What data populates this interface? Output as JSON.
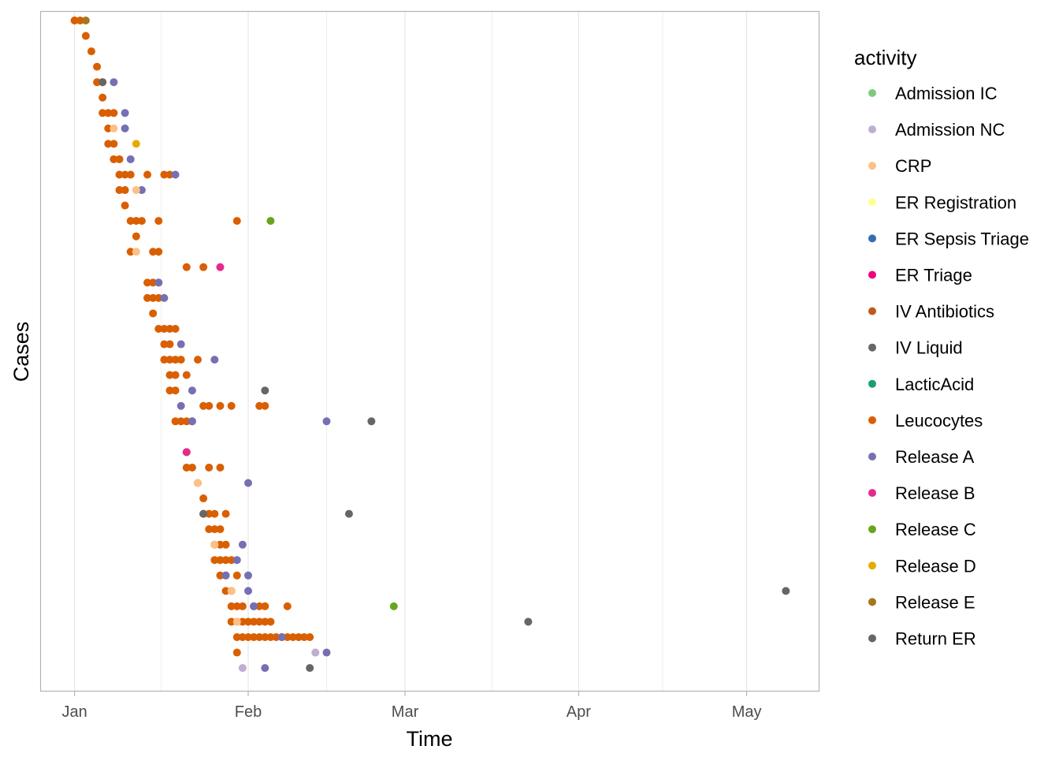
{
  "chart_data": {
    "type": "scatter",
    "xlabel": "Time",
    "ylabel": "Cases",
    "x_ticks": [
      {
        "label": "Jan",
        "date": "2014-01-01"
      },
      {
        "label": "Feb",
        "date": "2014-02-01"
      },
      {
        "label": "Mar",
        "date": "2014-03-01"
      },
      {
        "label": "Apr",
        "date": "2014-04-01"
      },
      {
        "label": "May",
        "date": "2014-05-01"
      }
    ],
    "xlim": [
      "2013-12-26",
      "2014-05-14"
    ],
    "grid": true,
    "legend": {
      "title": "activity",
      "placement": "right",
      "entries": [
        {
          "name": "Admission IC",
          "color": "#7fc97f"
        },
        {
          "name": "Admission NC",
          "color": "#beaed4"
        },
        {
          "name": "CRP",
          "color": "#fdc086"
        },
        {
          "name": "ER Registration",
          "color": "#ffff99"
        },
        {
          "name": "ER Sepsis Triage",
          "color": "#386cb0"
        },
        {
          "name": "ER Triage",
          "color": "#f0027f"
        },
        {
          "name": "IV Antibiotics",
          "color": "#bf5b17"
        },
        {
          "name": "IV Liquid",
          "color": "#666666"
        },
        {
          "name": "LacticAcid",
          "color": "#1b9e77"
        },
        {
          "name": "Leucocytes",
          "color": "#d95f02"
        },
        {
          "name": "Release A",
          "color": "#7570b3"
        },
        {
          "name": "Release B",
          "color": "#e7298a"
        },
        {
          "name": "Release C",
          "color": "#66a61e"
        },
        {
          "name": "Release D",
          "color": "#e6ab02"
        },
        {
          "name": "Release E",
          "color": "#a6761d"
        },
        {
          "name": "Return ER",
          "color": "#666666"
        }
      ]
    },
    "series": [
      {
        "name": "Leucocytes",
        "points": [
          [
            "2014-01-01",
            1
          ],
          [
            "2014-01-01",
            1
          ],
          [
            "2014-01-02",
            1
          ],
          [
            "2014-01-03",
            2
          ],
          [
            "2014-01-04",
            3
          ],
          [
            "2014-01-05",
            4
          ],
          [
            "2014-01-05",
            5
          ],
          [
            "2014-01-06",
            5
          ],
          [
            "2014-01-06",
            6
          ],
          [
            "2014-01-06",
            7
          ],
          [
            "2014-01-07",
            7
          ],
          [
            "2014-01-08",
            7
          ],
          [
            "2014-01-07",
            8
          ],
          [
            "2014-01-07",
            9
          ],
          [
            "2014-01-08",
            9
          ],
          [
            "2014-01-08",
            10
          ],
          [
            "2014-01-09",
            10
          ],
          [
            "2014-01-09",
            11
          ],
          [
            "2014-01-10",
            11
          ],
          [
            "2014-01-11",
            11
          ],
          [
            "2014-01-14",
            11
          ],
          [
            "2014-01-17",
            11
          ],
          [
            "2014-01-18",
            11
          ],
          [
            "2014-01-09",
            12
          ],
          [
            "2014-01-10",
            12
          ],
          [
            "2014-01-10",
            13
          ],
          [
            "2014-01-11",
            14
          ],
          [
            "2014-01-12",
            14
          ],
          [
            "2014-01-13",
            14
          ],
          [
            "2014-01-16",
            14
          ],
          [
            "2014-01-30",
            14
          ],
          [
            "2014-01-12",
            15
          ],
          [
            "2014-01-11",
            16
          ],
          [
            "2014-01-15",
            16
          ],
          [
            "2014-01-16",
            16
          ],
          [
            "2014-01-21",
            17
          ],
          [
            "2014-01-24",
            17
          ],
          [
            "2014-01-14",
            18
          ],
          [
            "2014-01-15",
            18
          ],
          [
            "2014-01-16",
            18
          ],
          [
            "2014-01-14",
            19
          ],
          [
            "2014-01-15",
            19
          ],
          [
            "2014-01-16",
            19
          ],
          [
            "2014-01-15",
            20
          ],
          [
            "2014-01-16",
            21
          ],
          [
            "2014-01-17",
            21
          ],
          [
            "2014-01-18",
            21
          ],
          [
            "2014-01-19",
            21
          ],
          [
            "2014-01-17",
            22
          ],
          [
            "2014-01-18",
            22
          ],
          [
            "2014-01-17",
            23
          ],
          [
            "2014-01-18",
            23
          ],
          [
            "2014-01-19",
            23
          ],
          [
            "2014-01-20",
            23
          ],
          [
            "2014-01-23",
            23
          ],
          [
            "2014-01-18",
            24
          ],
          [
            "2014-01-19",
            24
          ],
          [
            "2014-01-21",
            24
          ],
          [
            "2014-01-18",
            25
          ],
          [
            "2014-01-19",
            25
          ],
          [
            "2014-01-24",
            26
          ],
          [
            "2014-01-25",
            26
          ],
          [
            "2014-01-27",
            26
          ],
          [
            "2014-01-29",
            26
          ],
          [
            "2014-02-03",
            26
          ],
          [
            "2014-02-04",
            26
          ],
          [
            "2014-01-19",
            27
          ],
          [
            "2014-01-20",
            27
          ],
          [
            "2014-01-21",
            27
          ],
          [
            "2014-01-22",
            27
          ],
          [
            "2014-01-21",
            29
          ],
          [
            "2014-01-21",
            30
          ],
          [
            "2014-01-22",
            30
          ],
          [
            "2014-01-25",
            30
          ],
          [
            "2014-01-27",
            30
          ],
          [
            "2014-01-23",
            31
          ],
          [
            "2014-01-24",
            32
          ],
          [
            "2014-01-24",
            33
          ],
          [
            "2014-01-25",
            33
          ],
          [
            "2014-01-26",
            33
          ],
          [
            "2014-01-28",
            33
          ],
          [
            "2014-01-25",
            34
          ],
          [
            "2014-01-26",
            34
          ],
          [
            "2014-01-27",
            34
          ],
          [
            "2014-01-26",
            35
          ],
          [
            "2014-01-27",
            35
          ],
          [
            "2014-01-28",
            35
          ],
          [
            "2014-01-26",
            36
          ],
          [
            "2014-01-27",
            36
          ],
          [
            "2014-01-28",
            36
          ],
          [
            "2014-01-29",
            36
          ],
          [
            "2014-01-27",
            37
          ],
          [
            "2014-01-28",
            37
          ],
          [
            "2014-01-30",
            37
          ],
          [
            "2014-01-28",
            38
          ],
          [
            "2014-01-29",
            38
          ],
          [
            "2014-01-29",
            39
          ],
          [
            "2014-01-30",
            39
          ],
          [
            "2014-01-31",
            39
          ],
          [
            "2014-02-02",
            39
          ],
          [
            "2014-02-03",
            39
          ],
          [
            "2014-02-04",
            39
          ],
          [
            "2014-02-08",
            39
          ],
          [
            "2014-01-29",
            40
          ],
          [
            "2014-01-30",
            40
          ],
          [
            "2014-01-31",
            40
          ],
          [
            "2014-02-01",
            40
          ],
          [
            "2014-02-02",
            40
          ],
          [
            "2014-02-03",
            40
          ],
          [
            "2014-02-04",
            40
          ],
          [
            "2014-02-05",
            40
          ],
          [
            "2014-01-30",
            41
          ],
          [
            "2014-01-31",
            41
          ],
          [
            "2014-02-01",
            41
          ],
          [
            "2014-02-02",
            41
          ],
          [
            "2014-02-03",
            41
          ],
          [
            "2014-02-04",
            41
          ],
          [
            "2014-02-05",
            41
          ],
          [
            "2014-02-06",
            41
          ],
          [
            "2014-02-07",
            41
          ],
          [
            "2014-02-08",
            41
          ],
          [
            "2014-02-09",
            41
          ],
          [
            "2014-02-10",
            41
          ],
          [
            "2014-02-11",
            41
          ],
          [
            "2014-02-12",
            41
          ],
          [
            "2014-01-30",
            42
          ]
        ]
      },
      {
        "name": "Release A",
        "points": [
          [
            "2014-01-08",
            5
          ],
          [
            "2014-01-10",
            7
          ],
          [
            "2014-01-10",
            8
          ],
          [
            "2014-01-11",
            10
          ],
          [
            "2014-01-19",
            11
          ],
          [
            "2014-01-13",
            12
          ],
          [
            "2014-01-16",
            18
          ],
          [
            "2014-01-17",
            19
          ],
          [
            "2014-01-20",
            22
          ],
          [
            "2014-01-26",
            23
          ],
          [
            "2014-01-22",
            25
          ],
          [
            "2014-01-20",
            26
          ],
          [
            "2014-02-15",
            27
          ],
          [
            "2014-01-22",
            27
          ],
          [
            "2014-02-01",
            31
          ],
          [
            "2014-01-31",
            35
          ],
          [
            "2014-01-30",
            36
          ],
          [
            "2014-02-01",
            37
          ],
          [
            "2014-01-28",
            37
          ],
          [
            "2014-02-01",
            38
          ],
          [
            "2014-02-02",
            39
          ],
          [
            "2014-02-07",
            41
          ],
          [
            "2014-02-15",
            42
          ],
          [
            "2014-02-04",
            43
          ]
        ]
      },
      {
        "name": "CRP",
        "points": [
          [
            "2014-01-08",
            8
          ],
          [
            "2014-01-12",
            12
          ],
          [
            "2014-01-12",
            16
          ],
          [
            "2014-01-26",
            35
          ],
          [
            "2014-01-23",
            31
          ],
          [
            "2014-01-29",
            38
          ],
          [
            "2014-02-13",
            42
          ],
          [
            "2014-01-31",
            43
          ],
          [
            "2014-01-30",
            40
          ]
        ]
      },
      {
        "name": "Admission NC",
        "points": [
          [
            "2014-02-13",
            42
          ],
          [
            "2014-01-31",
            43
          ]
        ]
      },
      {
        "name": "IV Liquid",
        "points": [
          [
            "2014-01-06",
            5
          ],
          [
            "2014-01-24",
            33
          ]
        ]
      },
      {
        "name": "Return ER",
        "points": [
          [
            "2014-02-04",
            25
          ],
          [
            "2014-02-23",
            27
          ],
          [
            "2014-02-19",
            33
          ],
          [
            "2014-03-23",
            40
          ],
          [
            "2014-05-08",
            38
          ],
          [
            "2014-02-12",
            43
          ]
        ]
      },
      {
        "name": "Release B",
        "points": [
          [
            "2014-01-27",
            17
          ],
          [
            "2014-01-21",
            29
          ]
        ]
      },
      {
        "name": "Release C",
        "points": [
          [
            "2014-02-05",
            14
          ],
          [
            "2014-02-27",
            39
          ]
        ]
      },
      {
        "name": "Release D",
        "points": [
          [
            "2014-01-12",
            9
          ]
        ]
      },
      {
        "name": "Release E",
        "points": [
          [
            "2014-01-03",
            1
          ]
        ]
      }
    ]
  }
}
